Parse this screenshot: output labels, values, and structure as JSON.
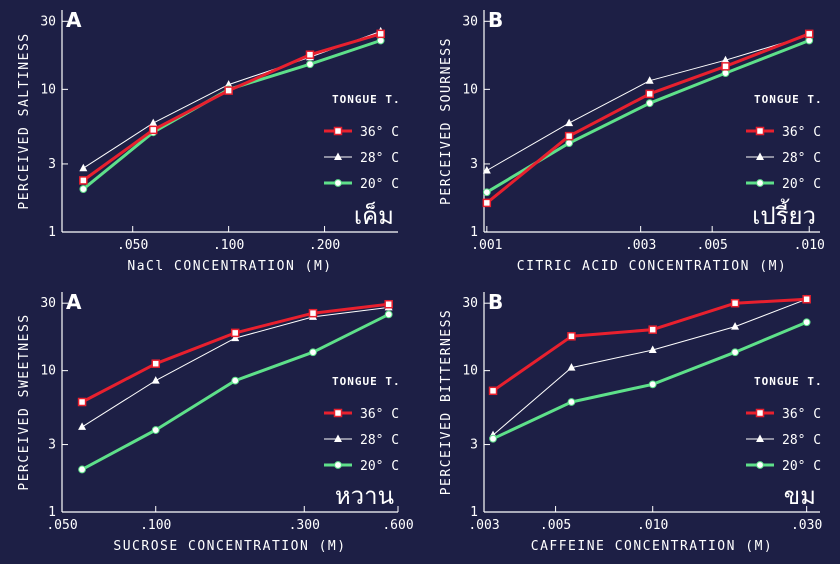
{
  "legend": {
    "title": "TONGUE T.",
    "items": [
      {
        "label": "36° C",
        "color": "#e8202e",
        "marker": "square",
        "width": 3
      },
      {
        "label": "28° C",
        "color": "#ffffff",
        "marker": "triangle",
        "width": 1
      },
      {
        "label": "20° C",
        "color": "#5ee08a",
        "marker": "circle",
        "width": 3
      }
    ]
  },
  "chart_data": [
    {
      "type": "line",
      "panel_letter": "A",
      "ylabel": "PERCEIVED SALTINESS",
      "xlabel": "NaCl CONCENTRATION (M)",
      "thai_label": "เค็ม",
      "x_scale": "log",
      "y_scale": "log",
      "xlim": [
        0.03,
        0.34
      ],
      "ylim": [
        1,
        36
      ],
      "x_ticks": [
        0.05,
        0.1,
        0.2
      ],
      "x_tick_labels": [
        ".050",
        ".100",
        ".200"
      ],
      "y_ticks": [
        1,
        3,
        10,
        30
      ],
      "y_tick_labels": [
        "1",
        "3",
        "10",
        "30"
      ],
      "x": [
        0.035,
        0.058,
        0.1,
        0.18,
        0.3
      ],
      "series": [
        {
          "name": "36° C",
          "values": [
            2.3,
            5.2,
            9.8,
            17.5,
            24.5
          ]
        },
        {
          "name": "28° C",
          "values": [
            2.8,
            5.8,
            10.8,
            16.8,
            25.5
          ]
        },
        {
          "name": "20° C",
          "values": [
            2.0,
            5.0,
            10.0,
            15.0,
            22.0
          ]
        }
      ]
    },
    {
      "type": "line",
      "panel_letter": "B",
      "ylabel": "PERCEIVED SOURNESS",
      "xlabel": "CITRIC ACID CONCENTRATION (M)",
      "thai_label": "เปรี้ยว",
      "x_scale": "log",
      "y_scale": "log",
      "xlim": [
        0.00098,
        0.0108
      ],
      "ylim": [
        1,
        36
      ],
      "x_ticks": [
        0.001,
        0.003,
        0.005,
        0.01
      ],
      "x_tick_labels": [
        ".001",
        ".003",
        ".005",
        ".010"
      ],
      "y_ticks": [
        1,
        3,
        10,
        30
      ],
      "y_tick_labels": [
        "1",
        "3",
        "10",
        "30"
      ],
      "x": [
        0.001,
        0.0018,
        0.0032,
        0.0055,
        0.01
      ],
      "series": [
        {
          "name": "36° C",
          "values": [
            1.6,
            4.7,
            9.3,
            14.5,
            24.5
          ]
        },
        {
          "name": "28° C",
          "values": [
            2.7,
            5.8,
            11.5,
            16.0,
            24.0
          ]
        },
        {
          "name": "20° C",
          "values": [
            1.9,
            4.2,
            8.0,
            13.0,
            22.0
          ]
        }
      ]
    },
    {
      "type": "line",
      "panel_letter": "A",
      "ylabel": "PERCEIVED SWEETNESS",
      "xlabel": "SUCROSE CONCENTRATION (M)",
      "thai_label": "หวาน",
      "x_scale": "log",
      "y_scale": "log",
      "xlim": [
        0.05,
        0.6
      ],
      "ylim": [
        1,
        36
      ],
      "x_ticks": [
        0.05,
        0.1,
        0.3,
        0.6
      ],
      "x_tick_labels": [
        ".050",
        ".100",
        ".300",
        ".600"
      ],
      "y_ticks": [
        1,
        3,
        10,
        30
      ],
      "y_tick_labels": [
        "1",
        "3",
        "10",
        "30"
      ],
      "x": [
        0.058,
        0.1,
        0.18,
        0.32,
        0.56
      ],
      "series": [
        {
          "name": "36° C",
          "values": [
            6.0,
            11.2,
            18.5,
            25.5,
            29.5
          ]
        },
        {
          "name": "28° C",
          "values": [
            4.0,
            8.5,
            17.0,
            24.0,
            28.0
          ]
        },
        {
          "name": "20° C",
          "values": [
            2.0,
            3.8,
            8.5,
            13.5,
            25.0
          ]
        }
      ]
    },
    {
      "type": "line",
      "panel_letter": "B",
      "ylabel": "PERCEIVED BITTERNESS",
      "xlabel": "CAFFEINE CONCENTRATION (M)",
      "thai_label": "ขม",
      "x_scale": "log",
      "y_scale": "log",
      "xlim": [
        0.003,
        0.033
      ],
      "ylim": [
        1,
        36
      ],
      "x_ticks": [
        0.003,
        0.005,
        0.01,
        0.03
      ],
      "x_tick_labels": [
        ".003",
        ".005",
        ".010",
        ".030"
      ],
      "y_ticks": [
        1,
        3,
        10,
        30
      ],
      "y_tick_labels": [
        "1",
        "3",
        "10",
        "30"
      ],
      "x": [
        0.0032,
        0.0056,
        0.01,
        0.018,
        0.03
      ],
      "series": [
        {
          "name": "36° C",
          "values": [
            7.2,
            17.5,
            19.5,
            30.0,
            32.0
          ]
        },
        {
          "name": "28° C",
          "values": [
            3.5,
            10.5,
            14.0,
            20.5,
            32.0
          ]
        },
        {
          "name": "20° C",
          "values": [
            3.3,
            6.0,
            8.0,
            13.5,
            22.0
          ]
        }
      ]
    }
  ]
}
